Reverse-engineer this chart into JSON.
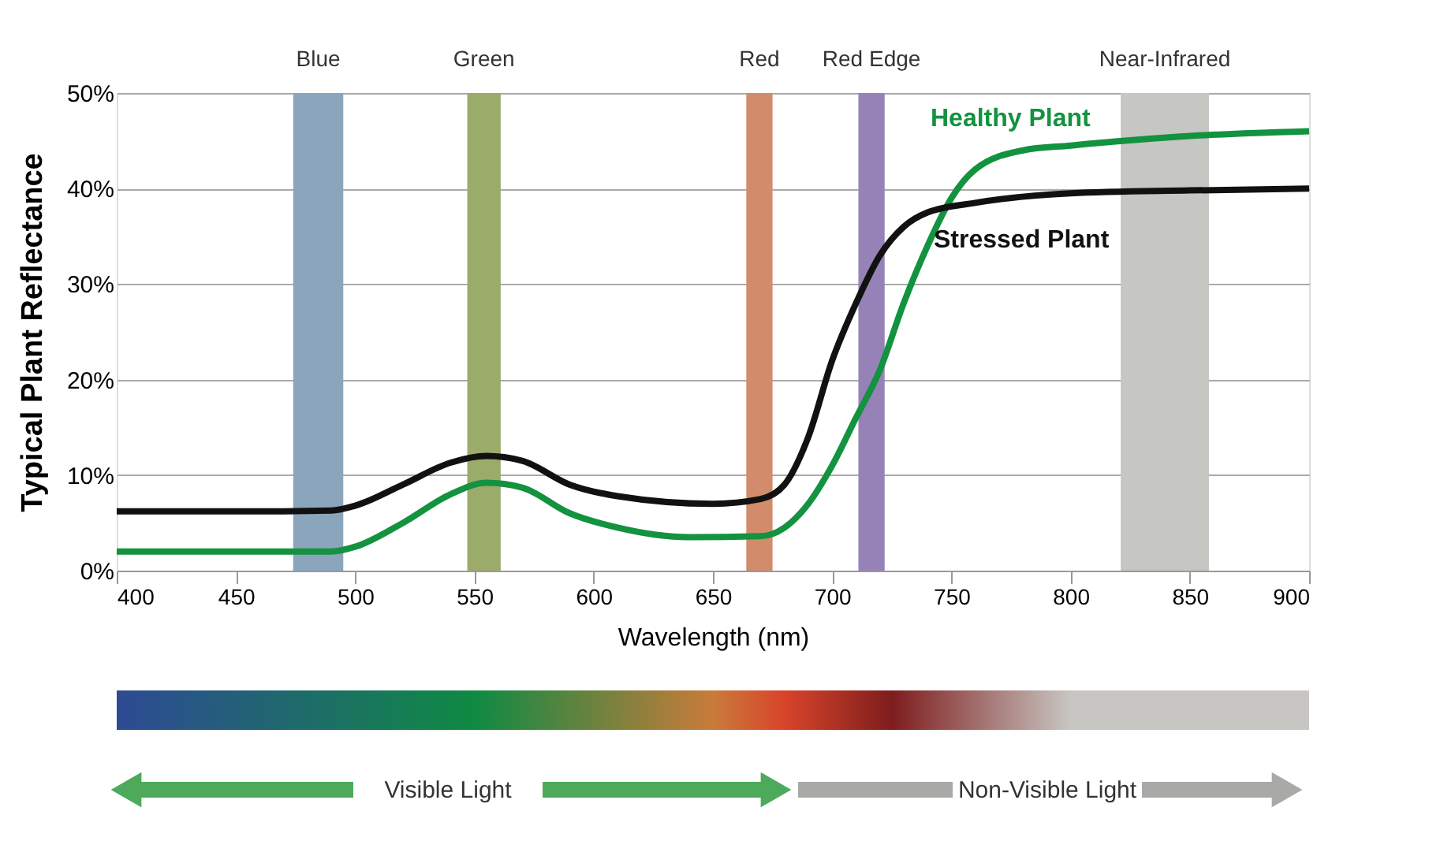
{
  "chart_data": {
    "type": "line",
    "xlabel": "Wavelength (nm)",
    "ylabel": "Typical Plant Reflectance",
    "xlim": [
      400,
      900
    ],
    "xticks": [
      400,
      450,
      500,
      550,
      600,
      650,
      700,
      750,
      800,
      850,
      900
    ],
    "ylim": [
      0,
      50
    ],
    "yticks": [
      {
        "value": 0,
        "label": "0%"
      },
      {
        "value": 10,
        "label": "10%"
      },
      {
        "value": 20,
        "label": "20%"
      },
      {
        "value": 30,
        "label": "30%"
      },
      {
        "value": 40,
        "label": "40%"
      },
      {
        "value": 50,
        "label": "50%"
      }
    ],
    "grid": "y",
    "marker": "none",
    "line_style": "solid",
    "series": [
      {
        "name": "Healthy Plant",
        "color": "#13923f",
        "x": [
          400,
          450,
          490,
          500,
          520,
          540,
          555,
          570,
          590,
          610,
          640,
          670,
          680,
          690,
          700,
          710,
          720,
          730,
          740,
          750,
          760,
          780,
          800,
          850,
          900
        ],
        "values": [
          2,
          2,
          2,
          2.5,
          5,
          8,
          9.2,
          8.7,
          6,
          4.5,
          3.5,
          3.6,
          4.5,
          7,
          11,
          16,
          21,
          28,
          34,
          39,
          42,
          44,
          44.5,
          45.5,
          46
        ]
      },
      {
        "name": "Stressed Plant",
        "color": "#111111",
        "x": [
          400,
          450,
          490,
          500,
          520,
          540,
          555,
          570,
          590,
          610,
          650,
          670,
          680,
          690,
          700,
          710,
          720,
          730,
          740,
          760,
          800,
          850,
          900
        ],
        "values": [
          6.2,
          6.2,
          6.3,
          6.8,
          9,
          11.3,
          12,
          11.5,
          9,
          7.8,
          7,
          7.5,
          9,
          14,
          22,
          28,
          33,
          36,
          37.5,
          38.5,
          39.5,
          39.8,
          40
        ]
      }
    ],
    "bands": [
      {
        "axis": "x",
        "from": 474,
        "to": 495,
        "label": "Blue",
        "color": "#8ba5bc"
      },
      {
        "axis": "x",
        "from": 547,
        "to": 561,
        "label": "Green",
        "color": "#9bab6a"
      },
      {
        "axis": "x",
        "from": 664,
        "to": 675,
        "label": "Red",
        "color": "#d28c6c"
      },
      {
        "axis": "x",
        "from": 711,
        "to": 722,
        "label": "Red Edge",
        "color": "#9782b8"
      },
      {
        "axis": "x",
        "from": 821,
        "to": 858,
        "label": "Near-Infrared",
        "color": "#c6c6c3"
      }
    ],
    "annotations": [
      "Visible Light",
      "Non-Visible Light"
    ]
  }
}
